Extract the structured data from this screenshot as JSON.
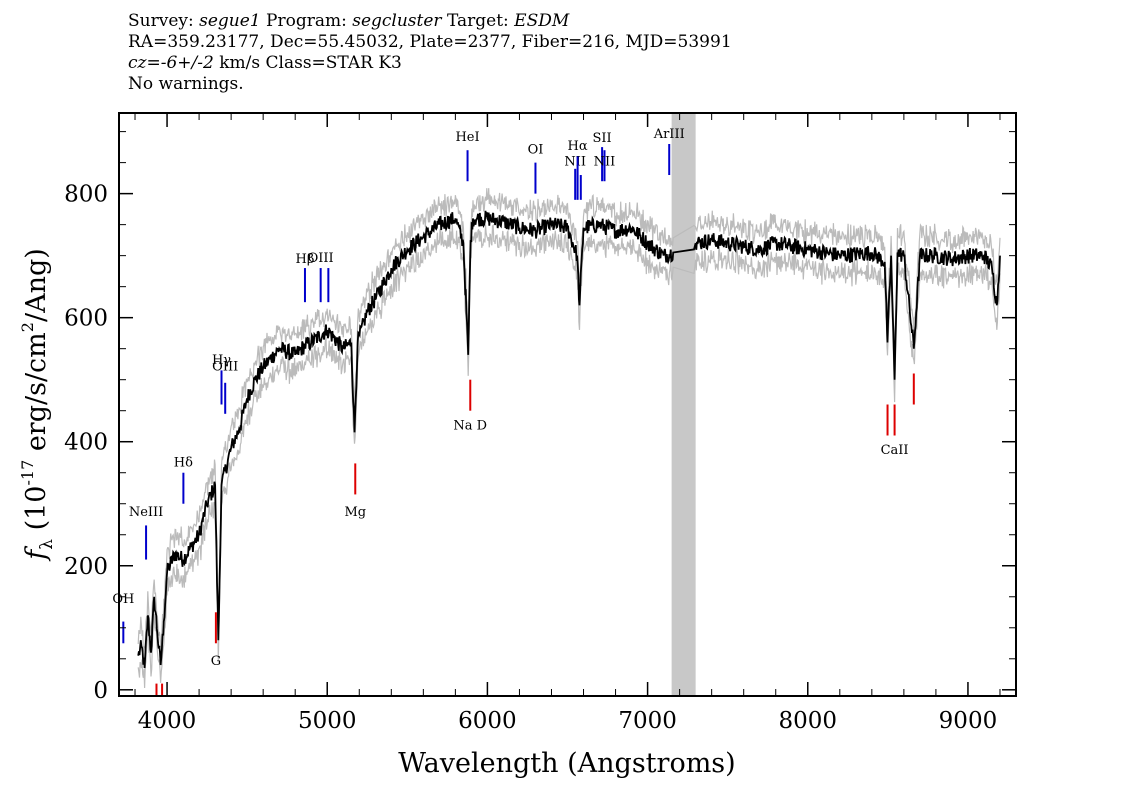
{
  "header": {
    "survey_label": "Survey: ",
    "survey": "segue1",
    "program_label": " Program: ",
    "program": "segcluster",
    "target_label": " Target: ",
    "target": "ESDM",
    "line2": "RA=359.23177, Dec=55.45032, Plate=2377, Fiber=216, MJD=53991",
    "cz_label": "cz",
    "cz_value": "=-6+/-2",
    "cz_rest": " km/s Class=STAR K3",
    "warnings": "No warnings."
  },
  "colors": {
    "flux": "#000000",
    "error_band": "#bbbbbb",
    "emission_line": "#0000cc",
    "absorption_line": "#dd0000",
    "masked_region": "#c8c8c8"
  },
  "chart_data": {
    "type": "line",
    "title": "",
    "xlabel": "Wavelength (Angstroms)",
    "ylabel_main": "f",
    "ylabel_sub": "λ",
    "ylabel_rest": " (10",
    "ylabel_exp": "-17",
    "ylabel_units": " erg/s/cm",
    "ylabel_exp2": "2",
    "ylabel_end": "/Ang)",
    "xlim": [
      3700,
      9300
    ],
    "ylim": [
      -10,
      930
    ],
    "x_ticks": [
      4000,
      5000,
      6000,
      7000,
      8000,
      9000
    ],
    "x_tick_labels": [
      "4000",
      "5000",
      "6000",
      "7000",
      "8000",
      "9000"
    ],
    "y_ticks": [
      0,
      200,
      400,
      600,
      800
    ],
    "y_tick_labels": [
      "0",
      "200",
      "400",
      "600",
      "800"
    ],
    "masked_region": [
      7150,
      7300
    ],
    "series": [
      {
        "name": "flux",
        "x": [
          3820,
          3840,
          3860,
          3880,
          3900,
          3920,
          3940,
          3960,
          3980,
          4000,
          4050,
          4100,
          4150,
          4200,
          4250,
          4300,
          4320,
          4340,
          4400,
          4450,
          4500,
          4550,
          4600,
          4700,
          4800,
          4860,
          4900,
          5000,
          5100,
          5150,
          5170,
          5190,
          5250,
          5300,
          5400,
          5500,
          5600,
          5700,
          5750,
          5800,
          5850,
          5880,
          5895,
          5910,
          6000,
          6100,
          6200,
          6300,
          6400,
          6500,
          6560,
          6575,
          6600,
          6700,
          6800,
          6900,
          7000,
          7100,
          7160,
          7290,
          7300,
          7400,
          7500,
          7600,
          7700,
          7800,
          8000,
          8200,
          8400,
          8480,
          8498,
          8520,
          8542,
          8560,
          8600,
          8662,
          8700,
          8800,
          8900,
          9000,
          9100,
          9150,
          9180,
          9200
        ],
        "y": [
          55,
          70,
          35,
          120,
          60,
          150,
          90,
          40,
          110,
          190,
          220,
          210,
          230,
          250,
          300,
          330,
          80,
          330,
          390,
          420,
          470,
          500,
          520,
          550,
          540,
          555,
          560,
          580,
          550,
          560,
          415,
          560,
          610,
          630,
          680,
          710,
          730,
          750,
          755,
          760,
          720,
          540,
          725,
          760,
          760,
          755,
          745,
          740,
          750,
          745,
          700,
          620,
          745,
          750,
          740,
          745,
          720,
          700,
          705,
          710,
          720,
          725,
          720,
          715,
          710,
          720,
          710,
          700,
          705,
          690,
          560,
          700,
          500,
          705,
          700,
          550,
          700,
          700,
          695,
          700,
          700,
          680,
          620,
          700
        ]
      }
    ],
    "line_markers": [
      {
        "name": "OH",
        "label": "OH",
        "wavelength": 3727,
        "type": "emission",
        "ymin": 75,
        "ymax": 110,
        "label_y": 140
      },
      {
        "name": "NeIII",
        "label": "NeIII",
        "wavelength": 3869,
        "type": "emission",
        "ymin": 210,
        "ymax": 265,
        "label_y": 280
      },
      {
        "name": "Hdelta",
        "label": "Hδ",
        "wavelength": 4102,
        "type": "emission",
        "ymin": 300,
        "ymax": 350,
        "label_y": 360
      },
      {
        "name": "Hgamma",
        "label": "Hγ",
        "wavelength": 4340,
        "type": "emission",
        "ymin": 460,
        "ymax": 515,
        "label_y": 525
      },
      {
        "name": "OIII_4363",
        "label": "OIII",
        "wavelength": 4363,
        "type": "emission",
        "ymin": 445,
        "ymax": 495,
        "label_y": 515
      },
      {
        "name": "Hbeta",
        "label": "Hβ",
        "wavelength": 4861,
        "type": "emission",
        "ymin": 625,
        "ymax": 680,
        "label_y": 688
      },
      {
        "name": "OIII_4959",
        "label": "OIII",
        "wavelength": 4959,
        "type": "emission",
        "ymin": 625,
        "ymax": 680,
        "label_y": 690
      },
      {
        "name": "OIII_5007",
        "label": "",
        "wavelength": 5007,
        "type": "emission",
        "ymin": 625,
        "ymax": 680,
        "label_y": 690
      },
      {
        "name": "HeI",
        "label": "HeI",
        "wavelength": 5876,
        "type": "emission",
        "ymin": 820,
        "ymax": 870,
        "label_y": 885
      },
      {
        "name": "OI",
        "label": "OI",
        "wavelength": 6300,
        "type": "emission",
        "ymin": 800,
        "ymax": 850,
        "label_y": 865
      },
      {
        "name": "NII_6548",
        "label": "NII",
        "wavelength": 6548,
        "type": "emission",
        "ymin": 790,
        "ymax": 840,
        "label_y": 845
      },
      {
        "name": "Halpha",
        "label": "Hα",
        "wavelength": 6563,
        "type": "emission",
        "ymin": 790,
        "ymax": 860,
        "label_y": 870
      },
      {
        "name": "NII_6583",
        "label": "",
        "wavelength": 6583,
        "type": "emission",
        "ymin": 790,
        "ymax": 830,
        "label_y": 840
      },
      {
        "name": "SII_6716",
        "label": "SII",
        "wavelength": 6716,
        "type": "emission",
        "ymin": 820,
        "ymax": 875,
        "label_y": 883
      },
      {
        "name": "SII_6731",
        "label": "NII",
        "wavelength": 6731,
        "type": "emission",
        "ymin": 820,
        "ymax": 870,
        "label_y": 845
      },
      {
        "name": "ArIII",
        "label": "ArIII",
        "wavelength": 7135,
        "type": "emission",
        "ymin": 830,
        "ymax": 880,
        "label_y": 890
      },
      {
        "name": "CaK",
        "label": "",
        "wavelength": 3934,
        "type": "absorption",
        "ymin": -10,
        "ymax": 10,
        "label_y": -20
      },
      {
        "name": "CaH",
        "label": "",
        "wavelength": 3969,
        "type": "absorption",
        "ymin": -10,
        "ymax": 10,
        "label_y": -20
      },
      {
        "name": "G",
        "label": "G",
        "wavelength": 4305,
        "type": "absorption",
        "ymin": 75,
        "ymax": 125,
        "label_y": 40
      },
      {
        "name": "Mg",
        "label": "Mg",
        "wavelength": 5175,
        "type": "absorption",
        "ymin": 315,
        "ymax": 365,
        "label_y": 280
      },
      {
        "name": "NaD",
        "label": "Na D",
        "wavelength": 5893,
        "type": "absorption",
        "ymin": 450,
        "ymax": 500,
        "label_y": 420
      },
      {
        "name": "CaII_8498",
        "label": "",
        "wavelength": 8498,
        "type": "absorption",
        "ymin": 410,
        "ymax": 460,
        "label_y": 380
      },
      {
        "name": "CaII_8542",
        "label": "CaII",
        "wavelength": 8542,
        "type": "absorption",
        "ymin": 410,
        "ymax": 460,
        "label_y": 380
      },
      {
        "name": "CaII_8662",
        "label": "",
        "wavelength": 8662,
        "type": "absorption",
        "ymin": 460,
        "ymax": 510,
        "label_y": 380
      }
    ]
  }
}
